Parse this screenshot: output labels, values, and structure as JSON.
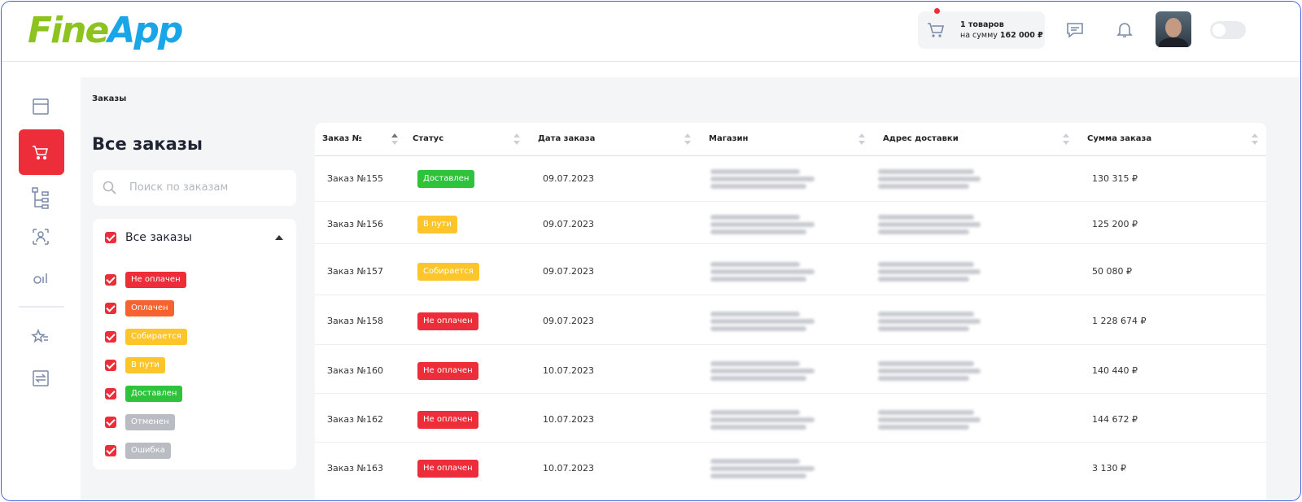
{
  "header": {
    "logo": {
      "part1": "Fine",
      "part2": "App"
    },
    "cart": {
      "count": "1 товаров",
      "sum_prefix": "на сумму",
      "sum": "162 000 ₽"
    }
  },
  "breadcrumb": "Заказы",
  "filters": {
    "title": "Все заказы",
    "search_placeholder": "Поиск по заказам",
    "group": "Все заказы",
    "statuses": [
      {
        "label": "Не оплачен",
        "color": "#ee2d3a"
      },
      {
        "label": "Оплачен",
        "color": "#f5632f"
      },
      {
        "label": "Собирается",
        "color": "#fcc62b"
      },
      {
        "label": "В пути",
        "color": "#fcc62b"
      },
      {
        "label": "Доставлен",
        "color": "#2fc33b"
      },
      {
        "label": "Отменен",
        "color": "#b9bcc2"
      },
      {
        "label": "Ошибка",
        "color": "#b9bcc2"
      }
    ]
  },
  "table": {
    "columns": [
      "Заказ №",
      "Статус",
      "Дата заказа",
      "Магазин",
      "Адрес доставки",
      "Сумма заказа"
    ],
    "rows": [
      {
        "order": "Заказ №155",
        "status": {
          "label": "Доставлен",
          "color": "#2fc33b"
        },
        "date": "09.07.2023",
        "sum": "130 315 ₽"
      },
      {
        "order": "Заказ №156",
        "status": {
          "label": "В пути",
          "color": "#fcc62b"
        },
        "date": "09.07.2023",
        "sum": "125 200 ₽"
      },
      {
        "order": "Заказ №157",
        "status": {
          "label": "Собирается",
          "color": "#fcc62b"
        },
        "date": "09.07.2023",
        "sum": "50 080 ₽"
      },
      {
        "order": "Заказ №158",
        "status": {
          "label": "Не оплачен",
          "color": "#ee2d3a"
        },
        "date": "09.07.2023",
        "sum": "1 228 674 ₽"
      },
      {
        "order": "Заказ №160",
        "status": {
          "label": "Не оплачен",
          "color": "#ee2d3a"
        },
        "date": "10.07.2023",
        "sum": "140 440 ₽"
      },
      {
        "order": "Заказ №162",
        "status": {
          "label": "Не оплачен",
          "color": "#ee2d3a"
        },
        "date": "10.07.2023",
        "sum": "144 672 ₽"
      },
      {
        "order": "Заказ №163",
        "status": {
          "label": "Не оплачен",
          "color": "#ee2d3a"
        },
        "date": "10.07.2023",
        "sum": "3 130 ₽"
      }
    ]
  }
}
